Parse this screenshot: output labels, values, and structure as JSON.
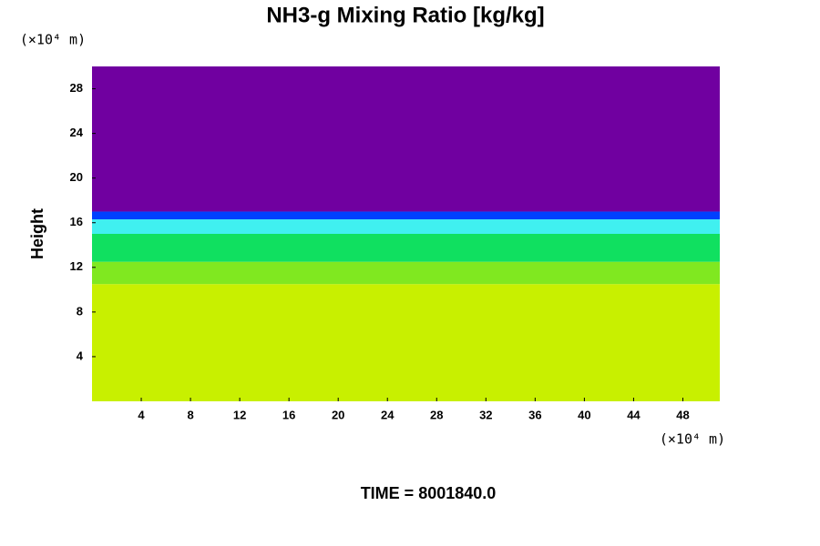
{
  "chart_data": {
    "type": "heatmap",
    "title": "NH3-g Mixing Ratio [kg/kg]",
    "ylabel": "Height",
    "x_unit": "(×10⁴ m)",
    "y_unit": "(×10⁴ m)",
    "footer": "TIME = 8001840.0",
    "xlim": [
      0,
      51
    ],
    "ylim": [
      0,
      30
    ],
    "xticks": [
      4,
      8,
      12,
      16,
      20,
      24,
      28,
      32,
      36,
      40,
      44,
      48
    ],
    "yticks": [
      4,
      8,
      12,
      16,
      20,
      24,
      28
    ],
    "bands": [
      {
        "color": "#c8f000",
        "y": [
          0,
          10.5
        ]
      },
      {
        "color": "#80e820",
        "y": [
          10.5,
          12.5
        ]
      },
      {
        "color": "#10e060",
        "y": [
          12.5,
          15
        ]
      },
      {
        "color": "#40f0f0",
        "y": [
          15,
          16.3
        ]
      },
      {
        "color": "#0040ff",
        "y": [
          16.3,
          17
        ]
      },
      {
        "color": "#7000a0",
        "y": [
          17,
          30
        ]
      }
    ]
  }
}
